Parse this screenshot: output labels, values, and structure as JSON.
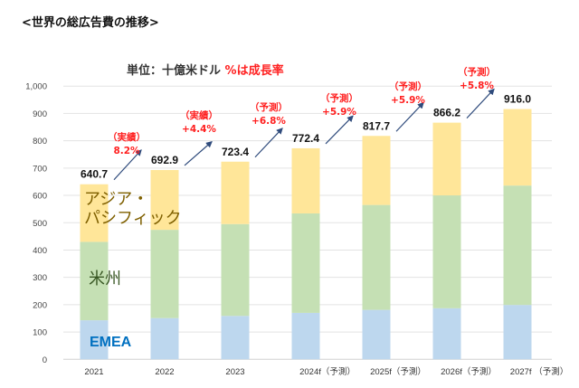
{
  "title": "<世界の総広告費の推移>",
  "subtitle": {
    "unit": "単位：十億米ドル",
    "note": "%は成長率"
  },
  "colors": {
    "emea": "#bdd7ee",
    "americas": "#c5e0b4",
    "apac": "#ffe699",
    "arrow": "#2f4b7c",
    "growth": "#ff2020",
    "grid": "#e3e3e3"
  },
  "chart_data": {
    "type": "bar",
    "stacked": true,
    "title": "<世界の総広告費の推移>",
    "subtitle": "単位：十億米ドル %は成長率",
    "xlabel": "",
    "ylabel": "",
    "ylim": [
      0,
      1000
    ],
    "yticks": [
      "0",
      "100",
      "200",
      "300",
      "400",
      "500",
      "600",
      "700",
      "800",
      "900",
      "1,000"
    ],
    "ytick_values": [
      0,
      100,
      200,
      300,
      400,
      500,
      600,
      700,
      800,
      900,
      1000
    ],
    "grid": true,
    "categories": [
      "2021",
      "2022",
      "2023",
      "2024f（予測）",
      "2025f（予測）",
      "2026f（予測）",
      "2027f （予測）"
    ],
    "series": [
      {
        "name": "EMEA",
        "values": [
          143,
          151,
          159,
          170,
          181,
          187,
          199
        ]
      },
      {
        "name": "米州",
        "values": [
          287,
          323,
          336,
          364,
          384,
          413,
          437
        ]
      },
      {
        "name": "アジア・パシフィック",
        "values": [
          210.7,
          218.9,
          228.4,
          238.4,
          252.7,
          266.2,
          280.0
        ]
      }
    ],
    "totals": [
      640.7,
      692.9,
      723.4,
      772.4,
      817.7,
      866.2,
      916.0
    ],
    "total_labels": [
      "640.7",
      "692.9",
      "723.4",
      "772.4",
      "817.7",
      "866.2",
      "916.0"
    ],
    "growth_annotations": [
      {
        "tag": "（実績）",
        "rate": "8.2%"
      },
      {
        "tag": "（実績）",
        "rate": "+4.4%"
      },
      {
        "tag": "（予測）",
        "rate": "+6.8%"
      },
      {
        "tag": "（予測）",
        "rate": "+5.9%"
      },
      {
        "tag": "（予測）",
        "rate": "+5.9%"
      },
      {
        "tag": "（予測）",
        "rate": "+5.8%"
      }
    ],
    "segment_labels": {
      "apac_line1": "アジア・",
      "apac_line2": "パシフィック",
      "americas": "米州",
      "emea": "EMEA"
    }
  }
}
